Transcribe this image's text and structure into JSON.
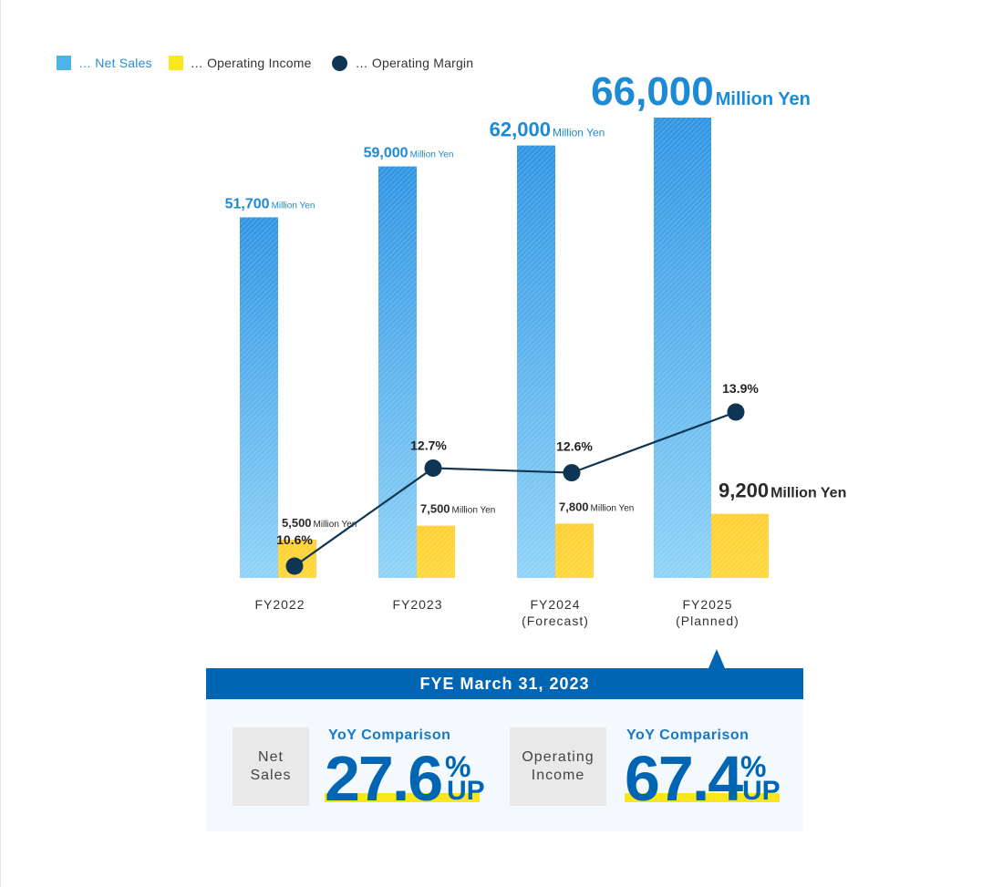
{
  "legend": {
    "net_sales": "… Net Sales",
    "operating_income": "… Operating Income",
    "operating_margin": "… Operating Margin"
  },
  "colors": {
    "net_sales_top": "#2e95e3",
    "net_sales_bottom": "#8fd3f7",
    "income_top": "#ffcf33",
    "income_bottom": "#ffd83a",
    "margin": "#0f3554",
    "accent_blue": "#0066b3",
    "highlight_yellow": "#f9e61c"
  },
  "chart_data": {
    "type": "bar",
    "categories": [
      "FY2022",
      "FY2023",
      "FY2024\n(Forecast)",
      "FY2025\n(Planned)"
    ],
    "unit": "Million Yen",
    "series": [
      {
        "name": "Net Sales",
        "values": [
          51700,
          59000,
          62000,
          66000
        ],
        "labels": [
          "51,700",
          "59,000",
          "62,000",
          "66,000"
        ]
      },
      {
        "name": "Operating Income",
        "values": [
          5500,
          7500,
          7800,
          9200
        ],
        "labels": [
          "5,500",
          "7,500",
          "7,800",
          "9,200"
        ]
      },
      {
        "name": "Operating Margin",
        "type": "line",
        "values": [
          10.6,
          12.7,
          12.6,
          13.9
        ],
        "labels": [
          "10.6%",
          "12.7%",
          "12.6%",
          "13.9%"
        ]
      }
    ],
    "grid": false,
    "legend_position": "top-left"
  },
  "panel": {
    "title": "FYE March 31, 2023",
    "items": [
      {
        "label_lines": [
          "Net",
          "Sales"
        ],
        "heading": "YoY Comparison",
        "value": "27.6",
        "percent": "%",
        "suffix": "UP"
      },
      {
        "label_lines": [
          "Operating",
          "Income"
        ],
        "heading": "YoY Comparison",
        "value": "67.4",
        "percent": "%",
        "suffix": "UP"
      }
    ]
  }
}
